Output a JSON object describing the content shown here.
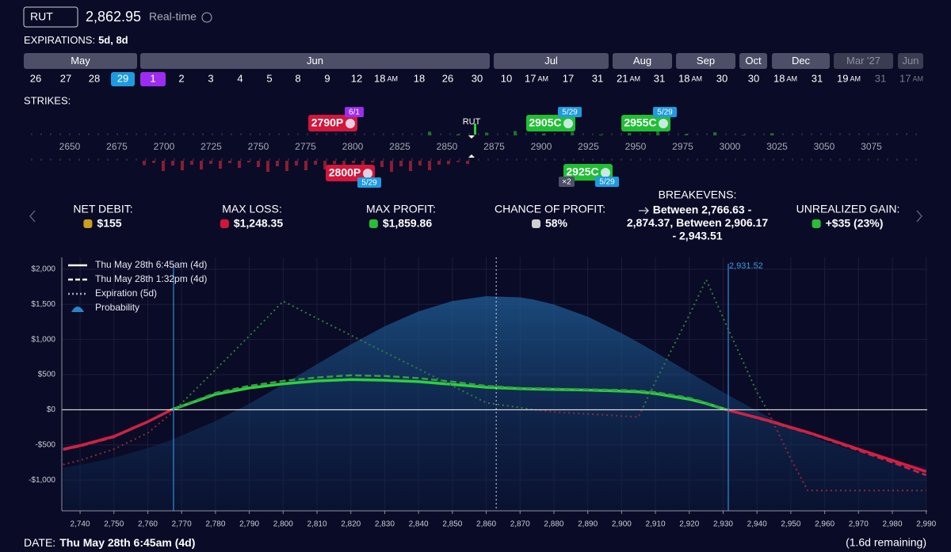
{
  "header": {
    "symbol": "RUT",
    "price": "2,862.95",
    "mode": "Real-time"
  },
  "expirations": {
    "label": "EXPIRATIONS:",
    "selected": "5d, 8d",
    "months": [
      "May",
      "Jun",
      "Jul",
      "Aug",
      "Sep",
      "Oct",
      "Dec",
      "Mar '27",
      "Jun"
    ],
    "days": [
      {
        "day": "26"
      },
      {
        "day": "27"
      },
      {
        "day": "28"
      },
      {
        "day": "29"
      },
      {
        "day": "1"
      },
      {
        "day": "2"
      },
      {
        "day": "3"
      },
      {
        "day": "4"
      },
      {
        "day": "5"
      },
      {
        "day": "8"
      },
      {
        "day": "9"
      },
      {
        "day": "12"
      },
      {
        "day": "18",
        "time": "AM"
      },
      {
        "day": "18"
      },
      {
        "day": "26"
      },
      {
        "day": "30"
      },
      {
        "day": "10"
      },
      {
        "day": "17",
        "time": "AM"
      },
      {
        "day": "17"
      },
      {
        "day": "31"
      },
      {
        "day": "21",
        "time": "AM"
      },
      {
        "day": "31"
      },
      {
        "day": "18",
        "time": "AM"
      },
      {
        "day": "30"
      },
      {
        "day": "30"
      },
      {
        "day": "18",
        "time": "AM"
      },
      {
        "day": "31"
      },
      {
        "day": "19",
        "time": "AM"
      },
      {
        "day": "31"
      },
      {
        "day": "17",
        "time": "AM"
      }
    ]
  },
  "strikes": {
    "label": "STRIKES:",
    "marker": "RUT",
    "ticks": [
      2650,
      2675,
      2700,
      2725,
      2750,
      2775,
      2800,
      2825,
      2850,
      2875,
      2900,
      2925,
      2950,
      2975,
      3000,
      3025,
      3050,
      3075
    ],
    "legs": [
      {
        "label": "2790P",
        "badge": "6/1"
      },
      {
        "label": "2905C",
        "badge": "5/29"
      },
      {
        "label": "2955C",
        "badge": "5/29"
      },
      {
        "label": "2800P",
        "badge": "5/29"
      },
      {
        "label": "2925C",
        "badge": "5/29",
        "qty": "×2"
      }
    ]
  },
  "stats": [
    {
      "label": "NET DEBIT:",
      "value": "$155"
    },
    {
      "label": "MAX LOSS:",
      "value": "$1,248.35"
    },
    {
      "label": "MAX PROFIT:",
      "value": "$1,859.86"
    },
    {
      "label": "CHANCE OF PROFIT:",
      "value": "58%"
    },
    {
      "label": "BREAKEVENS:",
      "lines": [
        "Between 2,766.63 -",
        "2,874.37, Between 2,906.17",
        "- 2,943.51"
      ]
    },
    {
      "label": "UNREALIZED GAIN:",
      "value": "+$35 (23%)"
    }
  ],
  "chart_data": {
    "type": "line",
    "x": [
      2735,
      2740,
      2750,
      2760,
      2767,
      2780,
      2790,
      2800,
      2810,
      2820,
      2830,
      2840,
      2850,
      2860,
      2870,
      2874,
      2880,
      2890,
      2900,
      2905,
      2910,
      2920,
      2925,
      2931,
      2940,
      2943,
      2950,
      2955,
      2960,
      2970,
      2980,
      2990
    ],
    "series": [
      {
        "name": "Thu May 28th 6:45am (4d)",
        "style": "solid",
        "color": "#2bd13a",
        "negative_color": "#e8173d",
        "values": [
          -560,
          -510,
          -380,
          -170,
          0,
          220,
          310,
          370,
          410,
          430,
          420,
          400,
          360,
          320,
          300,
          295,
          290,
          280,
          265,
          255,
          230,
          150,
          90,
          0,
          -110,
          -150,
          -250,
          -320,
          -400,
          -560,
          -720,
          -880
        ]
      },
      {
        "name": "Thu May 28th 1:32pm (4d)",
        "style": "dashed",
        "color": "#3a9a46",
        "negative_color": "#b0304a",
        "values": [
          -570,
          -520,
          -390,
          -170,
          0,
          240,
          340,
          410,
          460,
          490,
          480,
          450,
          400,
          340,
          310,
          305,
          300,
          290,
          280,
          270,
          250,
          170,
          100,
          0,
          -120,
          -160,
          -260,
          -330,
          -410,
          -580,
          -750,
          -930
        ]
      },
      {
        "name": "Expiration (5d)",
        "style": "dotted",
        "color": "#2f7f3c",
        "negative_color": "#8a2a3c",
        "values": [
          -780,
          -720,
          -560,
          -330,
          -50,
          570,
          1050,
          1545,
          1300,
          1060,
          820,
          580,
          340,
          100,
          30,
          0,
          -30,
          -60,
          -90,
          -100,
          400,
          1350,
          1850,
          1200,
          250,
          0,
          -700,
          -1150,
          -1150,
          -1150,
          -1150,
          -1150
        ]
      },
      {
        "name": "Probability",
        "style": "area",
        "color": "#1d5f96",
        "values": [
          -825,
          -785,
          -683,
          -546,
          -429,
          -162,
          87,
          360,
          648,
          930,
          1188,
          1400,
          1547,
          1616,
          1599,
          1568,
          1498,
          1324,
          1089,
          957,
          818,
          532,
          389,
          221,
          -17,
          -91,
          -250,
          -353,
          -447,
          -604,
          -727,
          -819
        ]
      }
    ],
    "xlim": [
      2734.6,
      2990.3
    ],
    "ylim": [
      -1438,
      2168
    ],
    "xticks": [
      {
        "value": 2740,
        "label": "2,740"
      },
      {
        "value": 2750,
        "label": "2,750"
      },
      {
        "value": 2760,
        "label": "2,760"
      },
      {
        "value": 2770,
        "label": "2,770"
      },
      {
        "value": 2780,
        "label": "2,780"
      },
      {
        "value": 2790,
        "label": "2,790"
      },
      {
        "value": 2800,
        "label": "2,800"
      },
      {
        "value": 2810,
        "label": "2,810"
      },
      {
        "value": 2820,
        "label": "2,820"
      },
      {
        "value": 2830,
        "label": "2,830"
      },
      {
        "value": 2840,
        "label": "2,840"
      },
      {
        "value": 2850,
        "label": "2,850"
      },
      {
        "value": 2860,
        "label": "2,860"
      },
      {
        "value": 2870,
        "label": "2,870"
      },
      {
        "value": 2880,
        "label": "2,880"
      },
      {
        "value": 2890,
        "label": "2,890"
      },
      {
        "value": 2900,
        "label": "2,900"
      },
      {
        "value": 2910,
        "label": "2,910"
      },
      {
        "value": 2920,
        "label": "2,920"
      },
      {
        "value": 2930,
        "label": "2,930"
      },
      {
        "value": 2940,
        "label": "2,940"
      },
      {
        "value": 2950,
        "label": "2,950"
      },
      {
        "value": 2960,
        "label": "2,960"
      },
      {
        "value": 2970,
        "label": "2,970"
      },
      {
        "value": 2980,
        "label": "2,980"
      },
      {
        "value": 2990,
        "label": "2,990"
      }
    ],
    "yticks": [
      {
        "value": 2000,
        "label": "$2,000"
      },
      {
        "value": 1500,
        "label": "$1,500"
      },
      {
        "value": 1000,
        "label": "$1,000"
      },
      {
        "value": 500,
        "label": "$500"
      },
      {
        "value": 0,
        "label": "$0"
      },
      {
        "value": -500,
        "label": "-$500"
      },
      {
        "value": -1000,
        "label": "-$1,000"
      }
    ],
    "grid": true,
    "markers": [
      {
        "x": 2767.6
      },
      {
        "x": 2931.52,
        "label": "2,931.52"
      }
    ],
    "price_line": 2862.95
  },
  "footer": {
    "label": "DATE:",
    "value": "Thu May 28th 6:45am (4d)",
    "remaining": "(1.6d remaining)"
  }
}
